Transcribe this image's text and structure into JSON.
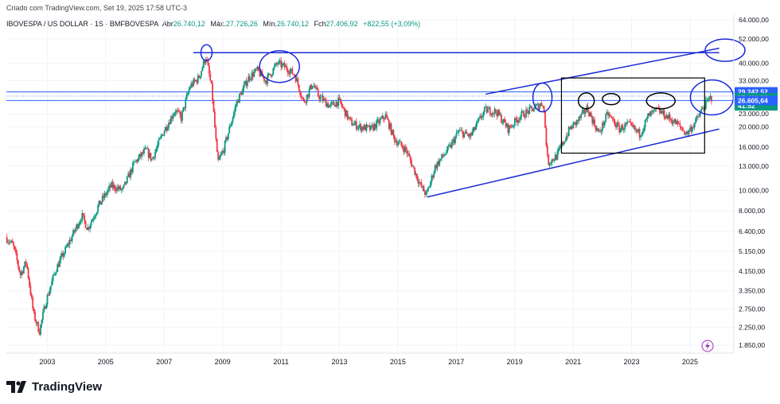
{
  "header": {
    "attribution": "Criado com TradingView.com, Set 19, 2025 17:58 UTC-3"
  },
  "legend": {
    "symbol": "IBOVESPA / US DOLLAR · 1S · BMFBOVESPA",
    "open_label": "Abr",
    "open_value": "26.740,12",
    "high_label": "Máx.",
    "high_value": "27.726,26",
    "low_label": "Mín.",
    "low_value": "26.740,12",
    "close_label": "Fch",
    "close_value": "27.406,92",
    "change_value": "+822,55 (+3,09%)"
  },
  "price_labels": {
    "upper_line": "29.242,52",
    "current_price": "27.406,92",
    "countdown": "41:52",
    "lower_line": "26.605,64"
  },
  "brand": {
    "name": "TradingView"
  },
  "colors": {
    "up": "#089981",
    "down": "#f23645",
    "annotation": "#1c2bd6",
    "hline": "#2962ff",
    "box": "#000000",
    "label_bg": "#2962ff"
  },
  "chart_data": {
    "type": "candlestick",
    "y_scale": "log",
    "y_ticks": [
      "64.000,00",
      "52.000,00",
      "40.000,00",
      "33.000,00",
      "23.000,00",
      "20.000,00",
      "16.000,00",
      "13.000,00",
      "10.000,00",
      "8.000,00",
      "6.400,00",
      "5.150,00",
      "4.150,00",
      "3.350,00",
      "2.750,00",
      "2.250,00",
      "1.850,00"
    ],
    "y_tick_values": [
      64000,
      52000,
      40000,
      33000,
      23000,
      20000,
      16000,
      13000,
      10000,
      8000,
      6400,
      5150,
      4150,
      3350,
      2750,
      2250,
      1850
    ],
    "x_ticks": [
      "2003",
      "2005",
      "2007",
      "2009",
      "2011",
      "2013",
      "2015",
      "2017",
      "2019",
      "2021",
      "2023",
      "2025"
    ],
    "x_tick_years": [
      2003,
      2005,
      2007,
      2009,
      2011,
      2013,
      2015,
      2017,
      2019,
      2021,
      2023,
      2025
    ],
    "x_range": [
      2001.6,
      2026.5
    ],
    "y_range": [
      1700,
      68000
    ],
    "price_path": [
      [
        2001.6,
        6000
      ],
      [
        2001.85,
        5500
      ],
      [
        2002.1,
        4000
      ],
      [
        2002.3,
        4600
      ],
      [
        2002.55,
        2600
      ],
      [
        2002.75,
        2150
      ],
      [
        2002.95,
        2900
      ],
      [
        2003.3,
        4200
      ],
      [
        2003.8,
        5800
      ],
      [
        2004.2,
        7600
      ],
      [
        2004.4,
        6600
      ],
      [
        2004.8,
        8600
      ],
      [
        2005.2,
        10500
      ],
      [
        2005.6,
        10000
      ],
      [
        2006.0,
        13500
      ],
      [
        2006.4,
        15500
      ],
      [
        2006.6,
        14000
      ],
      [
        2007.0,
        19000
      ],
      [
        2007.4,
        24000
      ],
      [
        2007.6,
        22000
      ],
      [
        2007.9,
        31000
      ],
      [
        2008.2,
        34000
      ],
      [
        2008.45,
        43000
      ],
      [
        2008.65,
        30000
      ],
      [
        2008.85,
        13500
      ],
      [
        2009.05,
        15500
      ],
      [
        2009.5,
        26000
      ],
      [
        2009.9,
        34000
      ],
      [
        2010.2,
        37000
      ],
      [
        2010.5,
        33000
      ],
      [
        2010.9,
        40000
      ],
      [
        2011.2,
        38000
      ],
      [
        2011.5,
        35000
      ],
      [
        2011.8,
        26000
      ],
      [
        2012.1,
        32000
      ],
      [
        2012.3,
        28000
      ],
      [
        2012.7,
        25000
      ],
      [
        2013.0,
        26500
      ],
      [
        2013.4,
        21000
      ],
      [
        2013.7,
        20000
      ],
      [
        2014.1,
        19500
      ],
      [
        2014.6,
        22500
      ],
      [
        2014.9,
        17500
      ],
      [
        2015.3,
        15500
      ],
      [
        2015.8,
        10500
      ],
      [
        2016.0,
        9500
      ],
      [
        2016.3,
        13000
      ],
      [
        2016.8,
        16000
      ],
      [
        2017.1,
        19000
      ],
      [
        2017.5,
        18000
      ],
      [
        2018.0,
        24000
      ],
      [
        2018.4,
        23500
      ],
      [
        2018.8,
        19500
      ],
      [
        2019.2,
        22500
      ],
      [
        2019.8,
        25000
      ],
      [
        2020.0,
        26000
      ],
      [
        2020.15,
        13500
      ],
      [
        2020.45,
        14500
      ],
      [
        2020.9,
        19500
      ],
      [
        2021.2,
        21500
      ],
      [
        2021.5,
        24500
      ],
      [
        2021.9,
        18500
      ],
      [
        2022.2,
        23000
      ],
      [
        2022.6,
        19500
      ],
      [
        2022.9,
        20500
      ],
      [
        2023.3,
        18500
      ],
      [
        2023.6,
        22500
      ],
      [
        2023.9,
        24000
      ],
      [
        2024.2,
        22500
      ],
      [
        2024.6,
        20500
      ],
      [
        2024.9,
        18500
      ],
      [
        2025.2,
        21000
      ],
      [
        2025.5,
        25000
      ],
      [
        2025.72,
        27406.92
      ]
    ],
    "horizontal_lines": [
      29242.52,
      27900,
      26605.64
    ],
    "last_price": 27406.92
  }
}
